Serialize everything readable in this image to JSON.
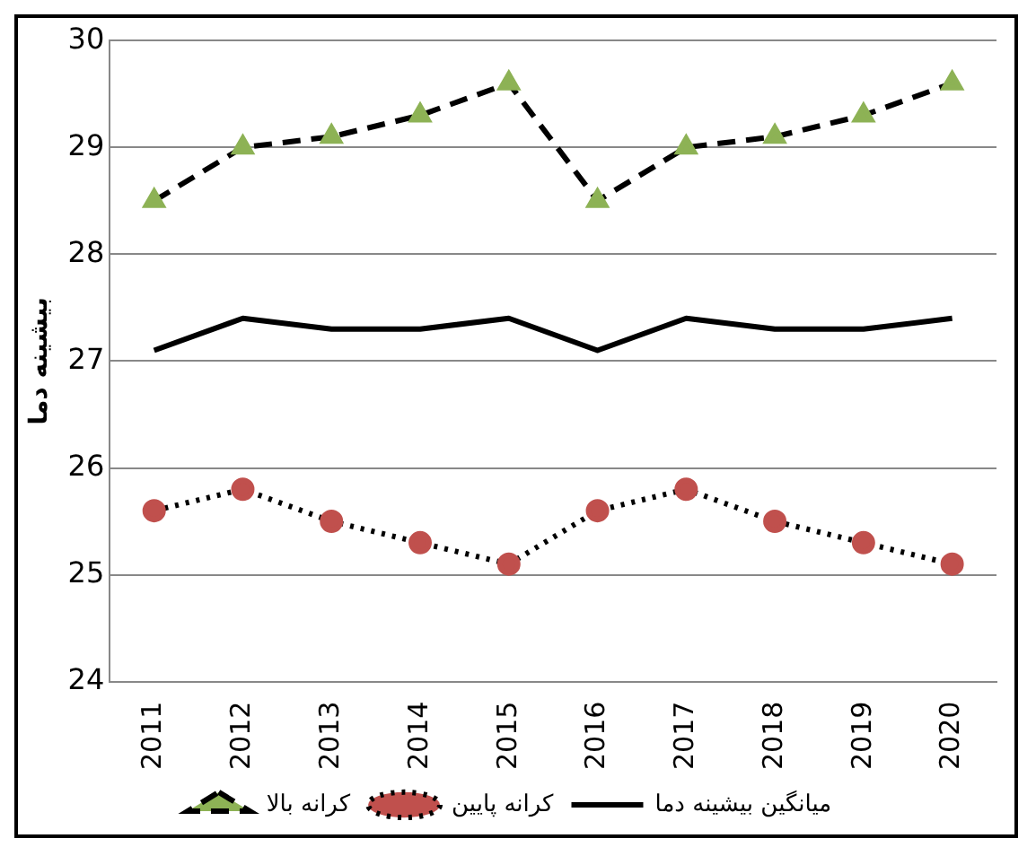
{
  "chart_data": {
    "type": "line",
    "ylabel": "بیشینه دما",
    "categories": [
      "2011",
      "2012",
      "2013",
      "2014",
      "2015",
      "2016",
      "2017",
      "2018",
      "2019",
      "2020"
    ],
    "series": [
      {
        "name": "کرانه بالا",
        "color": "#000000",
        "colors": [
          "#8db255",
          "#8db255",
          "#8db255",
          "#8db255",
          "#8db255",
          "#8db255",
          "#8db255",
          "#8db255",
          "#8db255",
          "#8db255"
        ],
        "marker": "triangle",
        "line_style": "dashed",
        "values": [
          28.5,
          29,
          29.1,
          29.3,
          29.6,
          28.5,
          29,
          29.1,
          29.3,
          29.6
        ]
      },
      {
        "name": "کرانه پایین",
        "color": "#000000",
        "colors": [
          "#c0504d",
          "#c0504d",
          "#c0504d",
          "#c0504d",
          "#c0504d",
          "#c0504d",
          "#c0504d",
          "#c0504d",
          "#c0504d",
          "#c0504d"
        ],
        "marker": "circle",
        "line_style": "dotted",
        "values": [
          25.6,
          25.8,
          25.5,
          25.3,
          25.1,
          25.6,
          25.8,
          25.5,
          25.3,
          25.1
        ]
      },
      {
        "name": "میانگین بیشینه دما",
        "color": "#000000",
        "marker": "none",
        "line_style": "solid",
        "values": [
          27.1,
          27.4,
          27.3,
          27.3,
          27.4,
          27.1,
          27.4,
          27.3,
          27.3,
          27.4
        ]
      }
    ],
    "ylim": [
      24,
      30
    ],
    "yticks": [
      24,
      25,
      26,
      27,
      28,
      29,
      30
    ],
    "grid": "y",
    "legend": "bottom"
  }
}
